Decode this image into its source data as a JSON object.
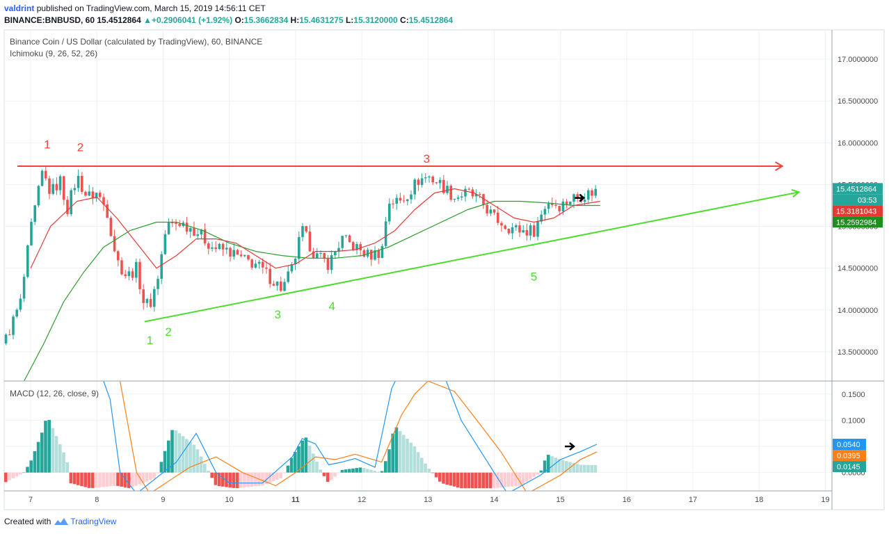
{
  "header": {
    "author": "valdrint",
    "published": "published on TradingView.com, March 15, 2019 14:56:11 CET"
  },
  "ohlc": {
    "symbol": "BINANCE:BNBUSD, 60",
    "last": "15.4512864",
    "change": "+0.2906041 (+1.92%)",
    "o_label": "O:",
    "o": "15.3662834",
    "h_label": "H:",
    "h": "15.4631275",
    "l_label": "L:",
    "l": "15.3120000",
    "c_label": "C:",
    "c": "15.4512864"
  },
  "footer": {
    "created": "Created with",
    "brand": "TradingView"
  },
  "colors": {
    "up": "#26a69a",
    "down": "#ef5350",
    "ma_fast": "#e53935",
    "ma_slow": "#2e9b2e",
    "resistance": "#f44336",
    "support": "#4cdd2c",
    "macd": "#2196f3",
    "signal": "#ff7f17",
    "hist_up_strong": "#26a69a",
    "hist_up_weak": "#b2dfdb",
    "hist_down_strong": "#ef5350",
    "hist_down_weak": "#ffcdd2"
  },
  "chart_data": [
    {
      "type": "candlestick",
      "title": "Binance Coin / US Dollar (calculated by TradingView), 60, BINANCE",
      "indicator": "Ichimoku (9, 26, 52, 26)",
      "x_ticks": [
        "7",
        "8",
        "9",
        "10",
        "11",
        "12",
        "13",
        "14",
        "15",
        "16",
        "17",
        "18",
        "19"
      ],
      "bold_ticks": [
        "11"
      ],
      "y_ticks": [
        "13.5000000",
        "14.0000000",
        "14.5000000",
        "15.0000000",
        "15.5000000",
        "16.0000000",
        "16.5000000",
        "17.0000000"
      ],
      "y_tick_values": [
        13.5,
        14.0,
        14.5,
        15.0,
        15.5,
        16.0,
        16.5,
        17.0
      ],
      "ylim": [
        13.15,
        17.35
      ],
      "xlim": [
        6.6,
        19.1
      ],
      "price_path": [
        [
          6.6,
          13.6
        ],
        [
          6.85,
          14.1
        ],
        [
          7.0,
          14.95
        ],
        [
          7.18,
          15.65
        ],
        [
          7.3,
          15.4
        ],
        [
          7.45,
          15.55
        ],
        [
          7.55,
          15.2
        ],
        [
          7.7,
          15.6
        ],
        [
          7.85,
          15.35
        ],
        [
          8.0,
          15.4
        ],
        [
          8.15,
          15.2
        ],
        [
          8.3,
          14.6
        ],
        [
          8.45,
          14.4
        ],
        [
          8.6,
          14.5
        ],
        [
          8.72,
          14.05
        ],
        [
          8.82,
          14.1
        ],
        [
          8.92,
          14.4
        ],
        [
          9.05,
          15.0
        ],
        [
          9.25,
          15.05
        ],
        [
          9.5,
          14.95
        ],
        [
          9.75,
          14.75
        ],
        [
          10.0,
          14.7
        ],
        [
          10.2,
          14.6
        ],
        [
          10.4,
          14.55
        ],
        [
          10.6,
          14.4
        ],
        [
          10.8,
          14.25
        ],
        [
          10.95,
          14.5
        ],
        [
          11.1,
          14.95
        ],
        [
          11.3,
          14.65
        ],
        [
          11.5,
          14.55
        ],
        [
          11.7,
          14.85
        ],
        [
          11.9,
          14.75
        ],
        [
          12.1,
          14.65
        ],
        [
          12.3,
          14.7
        ],
        [
          12.4,
          15.3
        ],
        [
          12.6,
          15.3
        ],
        [
          12.85,
          15.55
        ],
        [
          13.0,
          15.6
        ],
        [
          13.2,
          15.5
        ],
        [
          13.4,
          15.35
        ],
        [
          13.6,
          15.4
        ],
        [
          13.8,
          15.3
        ],
        [
          14.0,
          15.1
        ],
        [
          14.2,
          15.0
        ],
        [
          14.4,
          14.95
        ],
        [
          14.6,
          14.95
        ],
        [
          14.8,
          15.3
        ],
        [
          15.0,
          15.25
        ],
        [
          15.2,
          15.35
        ],
        [
          15.45,
          15.4
        ],
        [
          15.6,
          15.45
        ]
      ],
      "ma_fast_path": [
        [
          7.0,
          14.5
        ],
        [
          7.3,
          15.0
        ],
        [
          7.7,
          15.3
        ],
        [
          8.0,
          15.35
        ],
        [
          8.3,
          15.1
        ],
        [
          8.6,
          14.8
        ],
        [
          8.9,
          14.5
        ],
        [
          9.2,
          14.65
        ],
        [
          9.5,
          14.85
        ],
        [
          9.8,
          14.85
        ],
        [
          10.1,
          14.8
        ],
        [
          10.4,
          14.65
        ],
        [
          10.7,
          14.5
        ],
        [
          11.0,
          14.55
        ],
        [
          11.3,
          14.7
        ],
        [
          11.6,
          14.7
        ],
        [
          11.9,
          14.72
        ],
        [
          12.2,
          14.8
        ],
        [
          12.5,
          14.95
        ],
        [
          12.8,
          15.2
        ],
        [
          13.1,
          15.4
        ],
        [
          13.4,
          15.45
        ],
        [
          13.7,
          15.4
        ],
        [
          14.0,
          15.25
        ],
        [
          14.3,
          15.1
        ],
        [
          14.6,
          15.05
        ],
        [
          14.9,
          15.1
        ],
        [
          15.2,
          15.25
        ],
        [
          15.6,
          15.3
        ]
      ],
      "ma_slow_path": [
        [
          6.9,
          13.15
        ],
        [
          7.2,
          13.6
        ],
        [
          7.5,
          14.1
        ],
        [
          7.8,
          14.45
        ],
        [
          8.1,
          14.75
        ],
        [
          8.5,
          14.95
        ],
        [
          8.9,
          15.05
        ],
        [
          9.2,
          15.05
        ],
        [
          9.6,
          14.95
        ],
        [
          10.0,
          14.8
        ],
        [
          10.4,
          14.7
        ],
        [
          10.8,
          14.65
        ],
        [
          11.2,
          14.62
        ],
        [
          11.6,
          14.62
        ],
        [
          12.0,
          14.65
        ],
        [
          12.4,
          14.75
        ],
        [
          12.8,
          14.9
        ],
        [
          13.2,
          15.05
        ],
        [
          13.6,
          15.2
        ],
        [
          14.0,
          15.3
        ],
        [
          14.4,
          15.3
        ],
        [
          14.8,
          15.28
        ],
        [
          15.2,
          15.25
        ],
        [
          15.6,
          15.25
        ]
      ],
      "resistance_line": {
        "x": [
          6.8,
          18.35
        ],
        "y": [
          15.72,
          15.72
        ]
      },
      "support_line": {
        "x": [
          8.72,
          18.6
        ],
        "y": [
          13.86,
          15.41
        ]
      },
      "red_labels": [
        {
          "text": "1",
          "x": 7.25,
          "y": 15.93
        },
        {
          "text": "2",
          "x": 7.75,
          "y": 15.9
        },
        {
          "text": "3",
          "x": 12.98,
          "y": 15.76
        }
      ],
      "green_labels": [
        {
          "text": "1",
          "x": 8.8,
          "y": 13.59
        },
        {
          "text": "2",
          "x": 9.08,
          "y": 13.69
        },
        {
          "text": "3",
          "x": 10.73,
          "y": 13.9
        },
        {
          "text": "4",
          "x": 11.55,
          "y": 14.0
        },
        {
          "text": "5",
          "x": 14.6,
          "y": 14.35
        }
      ],
      "arrow_point": {
        "x": 15.3,
        "y": 15.34
      },
      "price_badges": [
        {
          "text": "15.4512864",
          "y": 15.4512864,
          "kind": "last"
        },
        {
          "text": "03:53",
          "y": 15.36,
          "kind": "countdown"
        },
        {
          "text": "15.3181043",
          "y": 15.3181043,
          "kind": "fast"
        },
        {
          "text": "15.2592984",
          "y": 15.2592984,
          "kind": "slow"
        }
      ]
    },
    {
      "type": "bar",
      "title": "MACD (12, 26, close, 9)",
      "y_ticks": [
        "0.0000",
        "0.0500",
        "0.1000",
        "0.1500"
      ],
      "y_tick_values": [
        0.0,
        0.05,
        0.1,
        0.15
      ],
      "ylim": [
        -0.035,
        0.175
      ],
      "histogram_path": [
        [
          6.6,
          -0.02
        ],
        [
          6.9,
          0.0
        ],
        [
          7.0,
          0.02
        ],
        [
          7.2,
          0.085
        ],
        [
          7.25,
          0.11
        ],
        [
          7.55,
          0.025
        ],
        [
          7.6,
          -0.02
        ],
        [
          7.9,
          -0.03
        ],
        [
          8.3,
          -0.025
        ],
        [
          8.5,
          -0.03
        ],
        [
          8.9,
          -0.01
        ],
        [
          9.0,
          0.03
        ],
        [
          9.15,
          0.085
        ],
        [
          9.5,
          0.05
        ],
        [
          9.7,
          0.0
        ],
        [
          9.8,
          -0.025
        ],
        [
          10.1,
          -0.03
        ],
        [
          10.5,
          -0.025
        ],
        [
          10.8,
          -0.01
        ],
        [
          10.95,
          0.03
        ],
        [
          11.15,
          0.07
        ],
        [
          11.4,
          0.0
        ],
        [
          11.5,
          -0.02
        ],
        [
          11.7,
          0.005
        ],
        [
          12.0,
          0.01
        ],
        [
          12.3,
          0.0
        ],
        [
          12.4,
          0.035
        ],
        [
          12.5,
          0.09
        ],
        [
          12.8,
          0.05
        ],
        [
          13.0,
          0.01
        ],
        [
          13.2,
          -0.02
        ],
        [
          13.5,
          -0.03
        ],
        [
          14.0,
          -0.03
        ],
        [
          14.4,
          -0.025
        ],
        [
          14.7,
          0.0
        ],
        [
          14.8,
          0.035
        ],
        [
          15.0,
          0.025
        ],
        [
          15.3,
          0.015
        ],
        [
          15.6,
          0.014
        ]
      ],
      "macd_path": [
        [
          8.1,
          0.175
        ],
        [
          8.2,
          0.14
        ],
        [
          8.35,
          0.0
        ],
        [
          8.6,
          -0.04
        ],
        [
          9.2,
          0.02
        ],
        [
          9.5,
          0.075
        ],
        [
          9.8,
          0.0
        ],
        [
          10.0,
          -0.02
        ],
        [
          10.5,
          -0.02
        ],
        [
          10.95,
          0.03
        ],
        [
          11.1,
          0.065
        ],
        [
          11.3,
          0.055
        ],
        [
          11.5,
          0.015
        ],
        [
          11.7,
          0.02
        ],
        [
          11.9,
          0.027
        ],
        [
          12.2,
          0.01
        ],
        [
          12.45,
          0.16
        ],
        [
          12.6,
          0.2
        ],
        [
          13.2,
          0.2
        ],
        [
          13.5,
          0.1
        ],
        [
          13.8,
          0.04
        ],
        [
          14.2,
          -0.04
        ],
        [
          14.7,
          -0.005
        ],
        [
          15.0,
          0.025
        ],
        [
          15.3,
          0.04
        ],
        [
          15.55,
          0.054
        ]
      ],
      "signal_path": [
        [
          8.35,
          0.175
        ],
        [
          8.6,
          0.0
        ],
        [
          8.8,
          -0.04
        ],
        [
          9.4,
          0.01
        ],
        [
          9.8,
          0.03
        ],
        [
          10.2,
          0.0
        ],
        [
          10.7,
          -0.025
        ],
        [
          11.0,
          0.0
        ],
        [
          11.3,
          0.03
        ],
        [
          11.6,
          0.025
        ],
        [
          11.9,
          0.035
        ],
        [
          12.3,
          0.02
        ],
        [
          12.6,
          0.11
        ],
        [
          12.8,
          0.15
        ],
        [
          13.0,
          0.175
        ],
        [
          13.4,
          0.155
        ],
        [
          13.8,
          0.09
        ],
        [
          14.1,
          0.04
        ],
        [
          14.5,
          -0.04
        ],
        [
          15.0,
          -0.005
        ],
        [
          15.3,
          0.025
        ],
        [
          15.55,
          0.0395
        ]
      ],
      "arrow_point": {
        "x": 15.15,
        "y": 0.05
      },
      "value_badges": [
        {
          "text": "0.0540",
          "y": 0.054,
          "kind": "macd"
        },
        {
          "text": "0.0395",
          "y": 0.0395,
          "kind": "signal"
        },
        {
          "text": "0.0145",
          "y": 0.0145,
          "kind": "hist"
        }
      ]
    }
  ]
}
